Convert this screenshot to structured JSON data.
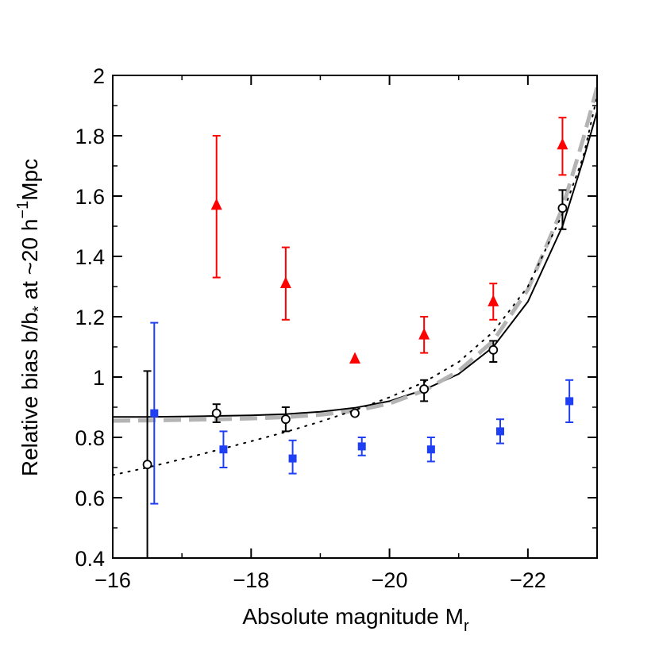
{
  "chart_data": {
    "type": "scatter",
    "title": "",
    "xlabel": "Absolute magnitude M",
    "xlabel_sub": "r",
    "ylabel_parts": {
      "a": "Relative bias b/b",
      "a_sub": "*",
      "b": " at ~20 h",
      "b_sup": "−1",
      "c": "Mpc"
    },
    "xlim": [
      -16,
      -23
    ],
    "ylim": [
      0.4,
      2.0
    ],
    "x_ticks": [
      -16,
      -18,
      -20,
      -22
    ],
    "x_tick_labels": [
      "−16",
      "−18",
      "−20",
      "−22"
    ],
    "y_ticks": [
      0.4,
      0.6,
      0.8,
      1.0,
      1.2,
      1.4,
      1.6,
      1.8,
      2.0
    ],
    "y_tick_labels": [
      "0.4",
      "0.6",
      "0.8",
      "1",
      "1.2",
      "1.4",
      "1.6",
      "1.8",
      "2"
    ],
    "grid": false,
    "series": [
      {
        "marker": "triangle",
        "color": "#ff0000",
        "points": [
          {
            "x": -17.5,
            "y": 1.57,
            "lo": 1.33,
            "hi": 1.8
          },
          {
            "x": -18.5,
            "y": 1.31,
            "lo": 1.19,
            "hi": 1.43
          },
          {
            "x": -19.5,
            "y": 1.06,
            "lo": null,
            "hi": null
          },
          {
            "x": -20.5,
            "y": 1.14,
            "lo": 1.08,
            "hi": 1.2
          },
          {
            "x": -21.5,
            "y": 1.25,
            "lo": 1.19,
            "hi": 1.31
          },
          {
            "x": -22.5,
            "y": 1.77,
            "lo": 1.67,
            "hi": 1.86
          }
        ]
      },
      {
        "marker": "circle-open",
        "color": "#000000",
        "points": [
          {
            "x": -16.5,
            "y": 0.71,
            "lo": 0.4,
            "hi": 1.02
          },
          {
            "x": -17.5,
            "y": 0.88,
            "lo": 0.85,
            "hi": 0.91
          },
          {
            "x": -18.5,
            "y": 0.86,
            "lo": 0.82,
            "hi": 0.9
          },
          {
            "x": -19.5,
            "y": 0.88,
            "lo": null,
            "hi": null
          },
          {
            "x": -20.5,
            "y": 0.96,
            "lo": 0.92,
            "hi": 0.99
          },
          {
            "x": -21.5,
            "y": 1.09,
            "lo": 1.05,
            "hi": 1.12
          },
          {
            "x": -22.5,
            "y": 1.56,
            "lo": 1.49,
            "hi": 1.62
          }
        ]
      },
      {
        "marker": "square",
        "color": "#1f3ff5",
        "points": [
          {
            "x": -16.6,
            "y": 0.88,
            "lo": 0.58,
            "hi": 1.18
          },
          {
            "x": -17.6,
            "y": 0.76,
            "lo": 0.7,
            "hi": 0.82
          },
          {
            "x": -18.6,
            "y": 0.73,
            "lo": 0.68,
            "hi": 0.79
          },
          {
            "x": -19.6,
            "y": 0.77,
            "lo": 0.74,
            "hi": 0.8
          },
          {
            "x": -20.6,
            "y": 0.76,
            "lo": 0.72,
            "hi": 0.8
          },
          {
            "x": -21.6,
            "y": 0.82,
            "lo": 0.78,
            "hi": 0.86
          },
          {
            "x": -22.6,
            "y": 0.92,
            "lo": 0.85,
            "hi": 0.99
          }
        ]
      }
    ],
    "curves": [
      {
        "style": "solid",
        "color": "#000000",
        "points": [
          [
            -16,
            0.868
          ],
          [
            -16.5,
            0.868
          ],
          [
            -17,
            0.869
          ],
          [
            -17.5,
            0.871
          ],
          [
            -18,
            0.873
          ],
          [
            -18.5,
            0.877
          ],
          [
            -19,
            0.885
          ],
          [
            -19.5,
            0.898
          ],
          [
            -20,
            0.92
          ],
          [
            -20.5,
            0.958
          ],
          [
            -21,
            1.01
          ],
          [
            -21.5,
            1.1
          ],
          [
            -22,
            1.25
          ],
          [
            -22.5,
            1.5
          ],
          [
            -22.8,
            1.72
          ],
          [
            -23,
            1.88
          ]
        ]
      },
      {
        "style": "dashed",
        "color": "#b4b4b4",
        "points": [
          [
            -16,
            0.855
          ],
          [
            -16.5,
            0.856
          ],
          [
            -17,
            0.858
          ],
          [
            -17.5,
            0.86
          ],
          [
            -18,
            0.863
          ],
          [
            -18.5,
            0.867
          ],
          [
            -19,
            0.875
          ],
          [
            -19.5,
            0.888
          ],
          [
            -20,
            0.912
          ],
          [
            -20.5,
            0.955
          ],
          [
            -21,
            1.02
          ],
          [
            -21.5,
            1.12
          ],
          [
            -22,
            1.29
          ],
          [
            -22.5,
            1.56
          ],
          [
            -22.8,
            1.79
          ],
          [
            -23,
            1.96
          ]
        ]
      },
      {
        "style": "dotted",
        "color": "#000000",
        "points": [
          [
            -16,
            0.675
          ],
          [
            -16.5,
            0.7
          ],
          [
            -17,
            0.728
          ],
          [
            -17.5,
            0.757
          ],
          [
            -18,
            0.787
          ],
          [
            -18.5,
            0.818
          ],
          [
            -19,
            0.852
          ],
          [
            -19.5,
            0.89
          ],
          [
            -20,
            0.933
          ],
          [
            -20.5,
            0.983
          ],
          [
            -21,
            1.05
          ],
          [
            -21.5,
            1.15
          ],
          [
            -22,
            1.3
          ],
          [
            -22.5,
            1.54
          ],
          [
            -22.8,
            1.73
          ],
          [
            -23,
            1.93
          ]
        ]
      }
    ]
  }
}
